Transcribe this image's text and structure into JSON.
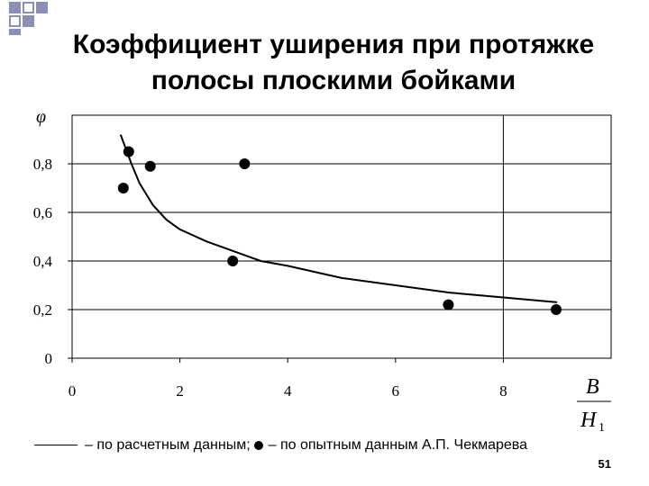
{
  "slide": {
    "title_line1": "Коэффициент уширения при протяжке",
    "title_line2": "полосы плоскими бойками",
    "slide_number": "51",
    "accent_color": "#8a8fb3"
  },
  "legend": {
    "line_label": "– по расчетным данным;",
    "dot_label": "– по опытным данным А.П. Чекмарева"
  },
  "chart_data": {
    "type": "scatter",
    "ylabel": "φ",
    "xlabel_numerator": "B",
    "xlabel_denominator": "H",
    "xlabel_subscript": "1",
    "xlim": [
      0,
      10
    ],
    "ylim": [
      0,
      1.0
    ],
    "x_ticks": [
      0,
      2,
      4,
      6,
      8
    ],
    "x_tick_labels": [
      "0",
      "2",
      "4",
      "6",
      "8"
    ],
    "y_ticks": [
      0,
      0.2,
      0.4,
      0.6,
      0.8
    ],
    "y_tick_labels": [
      "0",
      "0,2",
      "0,4",
      "0,6",
      "0,8"
    ],
    "grid": "y-major, x at 8",
    "series": [
      {
        "kind": "line",
        "x": [
          0.9,
          1.0,
          1.1,
          1.25,
          1.5,
          1.75,
          2.0,
          2.5,
          3.0,
          3.5,
          4.0,
          5.0,
          6.0,
          7.0,
          8.0,
          9.0
        ],
        "y": [
          0.92,
          0.86,
          0.8,
          0.72,
          0.63,
          0.57,
          0.53,
          0.48,
          0.44,
          0.4,
          0.38,
          0.33,
          0.3,
          0.27,
          0.25,
          0.23
        ]
      },
      {
        "kind": "points",
        "x": [
          0.95,
          1.05,
          1.45,
          3.2,
          2.98,
          6.98,
          8.98
        ],
        "y": [
          0.7,
          0.85,
          0.79,
          0.8,
          0.4,
          0.22,
          0.2
        ]
      }
    ]
  }
}
